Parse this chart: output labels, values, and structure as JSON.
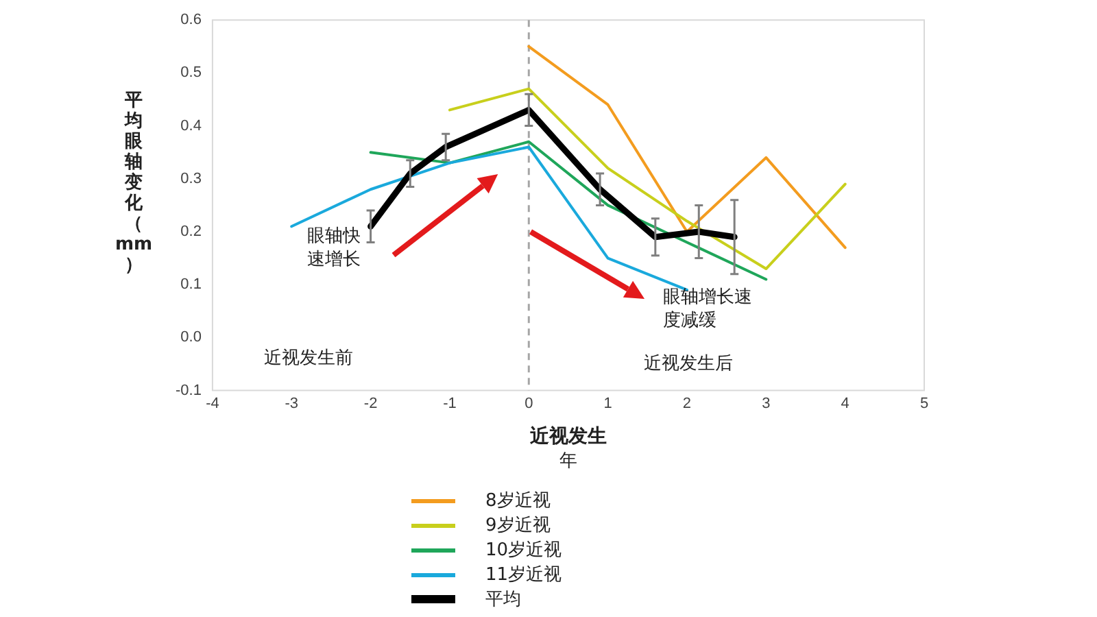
{
  "chart_data": {
    "type": "line",
    "xlabel": "近视发生年",
    "ylabel": "平均眼轴变化（mm）",
    "xlim": [
      -4,
      5
    ],
    "xticks": [
      -4,
      -3,
      -2,
      -1,
      0,
      1,
      2,
      3,
      4,
      5
    ],
    "ylim": [
      -0.1,
      0.6
    ],
    "yticks": [
      -0.1,
      {
        "value": 0,
        "label": "0.0"
      },
      0.1,
      0.2,
      0.3,
      0.4,
      0.5,
      0.6
    ],
    "grid": false,
    "legend": "bottom",
    "marker": "none",
    "line_style": "solid",
    "series": [
      {
        "name": "8岁近视",
        "color": "#f39c1f",
        "x": [
          0,
          1,
          2,
          3,
          4
        ],
        "values": [
          0.55,
          0.44,
          0.2,
          0.34,
          0.17
        ]
      },
      {
        "name": "9岁近视",
        "color": "#c8cf1c",
        "x": [
          -1,
          0,
          1,
          2,
          3,
          4
        ],
        "values": [
          0.43,
          0.47,
          0.32,
          0.22,
          0.13,
          0.29
        ]
      },
      {
        "name": "10岁近视",
        "color": "#1fa65a",
        "x": [
          -2,
          -1,
          0,
          1,
          2,
          3
        ],
        "values": [
          0.35,
          0.33,
          0.37,
          0.25,
          0.18,
          0.11
        ]
      },
      {
        "name": "11岁近视",
        "color": "#1aa9dc",
        "x": [
          -3,
          -2,
          -1,
          0,
          1,
          2
        ],
        "values": [
          0.21,
          0.28,
          0.33,
          0.36,
          0.15,
          0.09
        ]
      },
      {
        "name": "平均",
        "color": "#000000",
        "x": [
          -2,
          -1.5,
          -1.05,
          0,
          0.9,
          1.6,
          2.15,
          2.6
        ],
        "values": [
          0.21,
          0.31,
          0.36,
          0.43,
          0.28,
          0.19,
          0.2,
          0.19
        ],
        "errors": [
          0.03,
          0.025,
          0.025,
          0.03,
          0.03,
          0.035,
          0.05,
          0.07
        ]
      }
    ],
    "ref_lines": [
      {
        "axis": "x",
        "value": 0,
        "color": "#a6a6a6",
        "line_style": "dashed"
      }
    ],
    "annotations": [
      "眼轴快速增长",
      "眼轴增长速度减缓",
      "近视发生前",
      "近视发生后"
    ]
  }
}
